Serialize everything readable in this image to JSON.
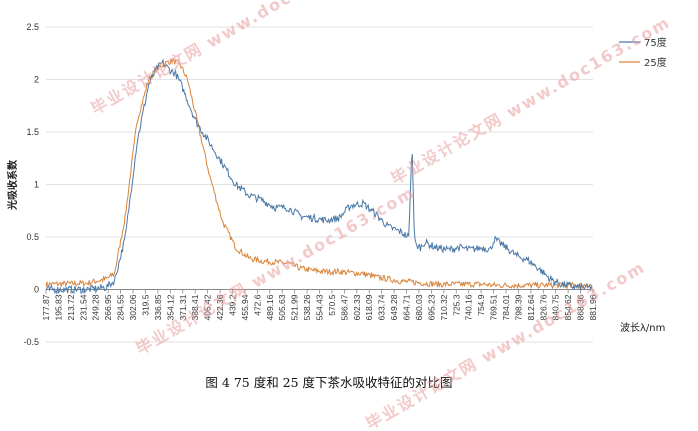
{
  "chart_data": {
    "type": "line",
    "ylabel": "光吸收系数",
    "xlabel": "波长λ/nm",
    "ylim": [
      -0.5,
      2.5
    ],
    "yticks": [
      "2.5",
      "2",
      "1.5",
      "1",
      "0.5",
      "0",
      "-0.5"
    ],
    "ytick_values": [
      2.5,
      2,
      1.5,
      1,
      0.5,
      0,
      -0.5
    ],
    "x_tick_labels": [
      "177.87",
      "195.83",
      "213.72",
      "231.54",
      "249.28",
      "266.95",
      "284.55",
      "302.06",
      "319.5",
      "336.85",
      "354.12",
      "371.31",
      "388.41",
      "405.42",
      "422.36",
      "439.2",
      "455.94",
      "472.6",
      "489.16",
      "505.63",
      "521.99",
      "538.26",
      "554.43",
      "570.5",
      "586.47",
      "602.33",
      "618.09",
      "633.74",
      "649.28",
      "664.71",
      "680.03",
      "695.23",
      "710.32",
      "725.3",
      "740.16",
      "754.9",
      "769.51",
      "784.01",
      "798.39",
      "812.64",
      "826.76",
      "840.75",
      "854.62",
      "868.36",
      "881.96"
    ],
    "xlim": [
      177.87,
      881.96
    ],
    "grid": "horizontal",
    "legend_position": "top-right",
    "series": [
      {
        "name": "75度",
        "color": "#4a78a8",
        "x": [
          177.87,
          230,
          255,
          266,
          280,
          295,
          310,
          320,
          328,
          336,
          345,
          352,
          360,
          371,
          388,
          405,
          422,
          439,
          456,
          473,
          489,
          506,
          522,
          538,
          555,
          570,
          586,
          602,
          618,
          634,
          645,
          649,
          652,
          655,
          660,
          665,
          680,
          695,
          710,
          725,
          740,
          750,
          755,
          770,
          784,
          798,
          812,
          827,
          841,
          855,
          868,
          881.96
        ],
        "y": [
          0.0,
          0.0,
          0.02,
          0.08,
          0.5,
          1.4,
          1.95,
          2.1,
          2.16,
          2.1,
          2.05,
          1.95,
          1.8,
          1.6,
          1.4,
          1.2,
          1.0,
          0.9,
          0.85,
          0.78,
          0.78,
          0.7,
          0.68,
          0.66,
          0.68,
          0.8,
          0.82,
          0.72,
          0.6,
          0.55,
          0.5,
          1.4,
          0.5,
          0.42,
          0.4,
          0.45,
          0.4,
          0.38,
          0.4,
          0.38,
          0.4,
          0.38,
          0.48,
          0.4,
          0.32,
          0.28,
          0.2,
          0.1,
          0.05,
          0.03,
          0.02,
          0.02
        ]
      },
      {
        "name": "25度",
        "color": "#d9843a",
        "x": [
          177.87,
          230,
          255,
          266,
          280,
          295,
          310,
          320,
          330,
          340,
          350,
          360,
          371,
          388,
          405,
          422,
          439,
          456,
          473,
          489,
          506,
          522,
          538,
          555,
          570,
          586,
          602,
          618,
          634,
          649,
          665,
          680,
          695,
          710,
          725,
          740,
          755,
          770,
          784,
          798,
          812,
          827,
          841,
          855,
          868,
          881.96
        ],
        "y": [
          0.05,
          0.06,
          0.1,
          0.15,
          0.7,
          1.6,
          2.0,
          2.1,
          2.15,
          2.18,
          2.15,
          2.0,
          1.65,
          1.1,
          0.65,
          0.4,
          0.3,
          0.27,
          0.26,
          0.25,
          0.2,
          0.18,
          0.17,
          0.17,
          0.16,
          0.15,
          0.12,
          0.1,
          0.08,
          0.07,
          0.06,
          0.05,
          0.05,
          0.05,
          0.05,
          0.05,
          0.04,
          0.04,
          0.04,
          0.04,
          0.04,
          0.04,
          0.04,
          0.04,
          0.04,
          0.04
        ]
      }
    ]
  },
  "caption": "图 4 75 度和 25 度下茶水吸收特征的对比图",
  "watermarks": [
    "毕业设计论文网 www.doc163.com",
    "毕业设计论文网 www.doc163.com",
    "毕业设计论文网 www.doc163.com",
    "毕业设计论文网 www.doc163.com"
  ]
}
